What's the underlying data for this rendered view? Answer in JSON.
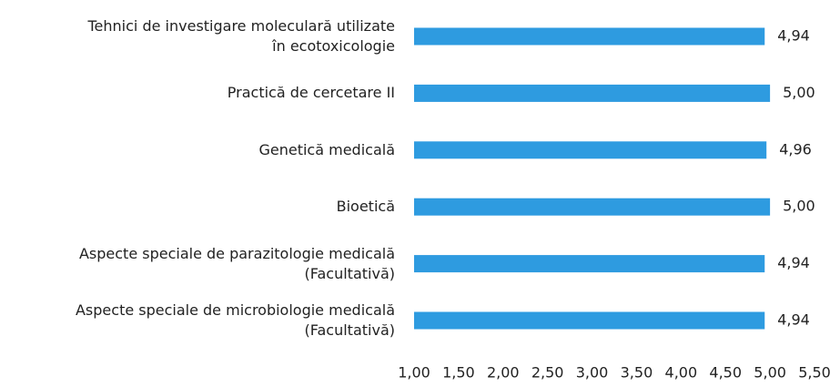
{
  "chart_data": {
    "type": "bar",
    "orientation": "horizontal",
    "categories": [
      "Tehnici de investigare moleculară utilizate\nîn ecotoxicologie",
      "Practică de cercetare II",
      "Genetică medicală",
      "Bioetică",
      "Aspecte speciale de parazitologie medicală\n(Facultativă)",
      "Aspecte speciale de microbiologie medicală\n(Facultativă)"
    ],
    "values": [
      4.94,
      5.0,
      4.96,
      5.0,
      4.94,
      4.94
    ],
    "value_labels": [
      "4,94",
      "5,00",
      "4,96",
      "5,00",
      "4,94",
      "4,94"
    ],
    "color": "#2e9be0",
    "xlim": [
      1,
      5.5
    ],
    "xticks": [
      {
        "value": 1,
        "label": "1,00"
      },
      {
        "value": 1.5,
        "label": "1,50"
      },
      {
        "value": 2,
        "label": "2,00"
      },
      {
        "value": 2.5,
        "label": "2,50"
      },
      {
        "value": 3,
        "label": "3,00"
      },
      {
        "value": 3.5,
        "label": "3,50"
      },
      {
        "value": 4,
        "label": "4,00"
      },
      {
        "value": 4.5,
        "label": "4,50"
      },
      {
        "value": 5,
        "label": "5,00"
      },
      {
        "value": 5.5,
        "label": "5,50"
      }
    ]
  }
}
